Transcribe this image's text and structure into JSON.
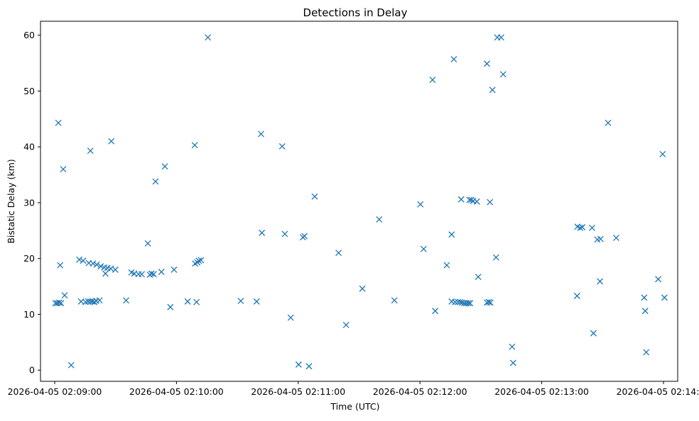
{
  "chart_data": {
    "type": "scatter",
    "title": "Detections in Delay",
    "xlabel": "Time (UTC)",
    "ylabel": "Bistatic Delay (km)",
    "marker": "x",
    "color": "#1f77b4",
    "grid": false,
    "xlim": [
      "2026-04-05 02:08:53",
      "2026-04-05 02:14:07"
    ],
    "ylim": [
      -2.0,
      62.5
    ],
    "x_ticks": [
      {
        "t": "2026-04-05 02:09:00",
        "label": "2026-04-05 02:09:00"
      },
      {
        "t": "2026-04-05 02:10:00",
        "label": "2026-04-05 02:10:00"
      },
      {
        "t": "2026-04-05 02:11:00",
        "label": "2026-04-05 02:11:00"
      },
      {
        "t": "2026-04-05 02:12:00",
        "label": "2026-04-05 02:12:00"
      },
      {
        "t": "2026-04-05 02:13:00",
        "label": "2026-04-05 02:13:00"
      },
      {
        "t": "2026-04-05 02:14:00",
        "label": "2026-04-05 02:14:00"
      }
    ],
    "y_ticks": [
      0,
      10,
      20,
      30,
      40,
      50,
      60
    ],
    "points": [
      [
        "2026-04-05 02:09:00.4",
        12.0
      ],
      [
        "2026-04-05 02:09:01.3",
        12.0
      ],
      [
        "2026-04-05 02:09:02.2",
        12.1
      ],
      [
        "2026-04-05 02:09:03.1",
        12.0
      ],
      [
        "2026-04-05 02:09:01.8",
        44.3
      ],
      [
        "2026-04-05 02:09:02.7",
        18.8
      ],
      [
        "2026-04-05 02:09:04.2",
        36.0
      ],
      [
        "2026-04-05 02:09:04.9",
        13.4
      ],
      [
        "2026-04-05 02:09:08.1",
        0.9
      ],
      [
        "2026-04-05 02:09:12.1",
        19.8
      ],
      [
        "2026-04-05 02:09:14.0",
        19.6
      ],
      [
        "2026-04-05 02:09:16.8",
        19.2
      ],
      [
        "2026-04-05 02:09:18.9",
        19.1
      ],
      [
        "2026-04-05 02:09:20.7",
        18.9
      ],
      [
        "2026-04-05 02:09:22.7",
        18.6
      ],
      [
        "2026-04-05 02:09:24.4",
        18.4
      ],
      [
        "2026-04-05 02:09:26.0",
        18.3
      ],
      [
        "2026-04-05 02:09:27.6",
        18.2
      ],
      [
        "2026-04-05 02:09:29.9",
        18.0
      ],
      [
        "2026-04-05 02:09:25.0",
        17.3
      ],
      [
        "2026-04-05 02:09:13.0",
        12.3
      ],
      [
        "2026-04-05 02:09:15.2",
        12.2
      ],
      [
        "2026-04-05 02:09:16.5",
        12.3
      ],
      [
        "2026-04-05 02:09:17.6",
        12.3
      ],
      [
        "2026-04-05 02:09:18.6",
        12.3
      ],
      [
        "2026-04-05 02:09:19.5",
        12.2
      ],
      [
        "2026-04-05 02:09:20.5",
        12.4
      ],
      [
        "2026-04-05 02:09:22.1",
        12.5
      ],
      [
        "2026-04-05 02:09:17.6",
        39.3
      ],
      [
        "2026-04-05 02:09:27.9",
        41.0
      ],
      [
        "2026-04-05 02:09:35.2",
        12.5
      ],
      [
        "2026-04-05 02:09:37.8",
        17.5
      ],
      [
        "2026-04-05 02:09:39.2",
        17.3
      ],
      [
        "2026-04-05 02:09:41.3",
        17.2
      ],
      [
        "2026-04-05 02:09:42.9",
        17.2
      ],
      [
        "2026-04-05 02:09:46.9",
        17.1
      ],
      [
        "2026-04-05 02:09:47.7",
        17.3
      ],
      [
        "2026-04-05 02:09:48.8",
        17.2
      ],
      [
        "2026-04-05 02:09:52.6",
        17.6
      ],
      [
        "2026-04-05 02:09:45.9",
        22.7
      ],
      [
        "2026-04-05 02:09:49.7",
        33.8
      ],
      [
        "2026-04-05 02:09:54.3",
        36.5
      ],
      [
        "2026-04-05 02:09:57.0",
        11.3
      ],
      [
        "2026-04-05 02:09:58.8",
        18.0
      ],
      [
        "2026-04-05 02:10:05.5",
        12.3
      ],
      [
        "2026-04-05 02:10:09.2",
        19.1
      ],
      [
        "2026-04-05 02:10:10.3",
        19.3
      ],
      [
        "2026-04-05 02:10:11.0",
        19.6
      ],
      [
        "2026-04-05 02:10:12.1",
        19.7
      ],
      [
        "2026-04-05 02:10:09.9",
        12.2
      ],
      [
        "2026-04-05 02:10:09.0",
        40.3
      ],
      [
        "2026-04-05 02:10:15.5",
        59.6
      ],
      [
        "2026-04-05 02:10:31.7",
        12.4
      ],
      [
        "2026-04-05 02:10:39.5",
        12.3
      ],
      [
        "2026-04-05 02:10:41.7",
        42.3
      ],
      [
        "2026-04-05 02:10:42.1",
        24.6
      ],
      [
        "2026-04-05 02:10:52.1",
        40.1
      ],
      [
        "2026-04-05 02:10:53.4",
        24.4
      ],
      [
        "2026-04-05 02:10:56.3",
        9.4
      ],
      [
        "2026-04-05 02:11:00.2",
        1.0
      ],
      [
        "2026-04-05 02:11:02.3",
        23.8
      ],
      [
        "2026-04-05 02:11:03.1",
        24.0
      ],
      [
        "2026-04-05 02:11:05.3",
        0.7
      ],
      [
        "2026-04-05 02:11:08.1",
        31.1
      ],
      [
        "2026-04-05 02:11:19.9",
        21.0
      ],
      [
        "2026-04-05 02:11:23.6",
        8.1
      ],
      [
        "2026-04-05 02:11:31.6",
        14.6
      ],
      [
        "2026-04-05 02:11:39.9",
        27.0
      ],
      [
        "2026-04-05 02:11:47.4",
        12.5
      ],
      [
        "2026-04-05 02:12:00.2",
        29.7
      ],
      [
        "2026-04-05 02:12:01.8",
        21.7
      ],
      [
        "2026-04-05 02:12:06.2",
        52.0
      ],
      [
        "2026-04-05 02:12:07.5",
        10.6
      ],
      [
        "2026-04-05 02:12:13.2",
        18.8
      ],
      [
        "2026-04-05 02:12:15.6",
        24.3
      ],
      [
        "2026-04-05 02:12:16.7",
        55.7
      ],
      [
        "2026-04-05 02:12:15.6",
        12.3
      ],
      [
        "2026-04-05 02:12:17.3",
        12.2
      ],
      [
        "2026-04-05 02:12:18.7",
        12.2
      ],
      [
        "2026-04-05 02:12:19.8",
        12.2
      ],
      [
        "2026-04-05 02:12:20.7",
        12.1
      ],
      [
        "2026-04-05 02:12:21.8",
        12.0
      ],
      [
        "2026-04-05 02:12:22.8",
        12.0
      ],
      [
        "2026-04-05 02:12:23.8",
        12.0
      ],
      [
        "2026-04-05 02:12:24.7",
        12.0
      ],
      [
        "2026-04-05 02:12:20.3",
        30.6
      ],
      [
        "2026-04-05 02:12:24.4",
        30.5
      ],
      [
        "2026-04-05 02:12:25.3",
        30.5
      ],
      [
        "2026-04-05 02:12:26.2",
        30.3
      ],
      [
        "2026-04-05 02:12:28.0",
        30.2
      ],
      [
        "2026-04-05 02:12:28.7",
        16.7
      ],
      [
        "2026-04-05 02:12:33.0",
        54.9
      ],
      [
        "2026-04-05 02:12:33.0",
        12.1
      ],
      [
        "2026-04-05 02:12:33.9",
        12.2
      ],
      [
        "2026-04-05 02:12:34.7",
        12.1
      ],
      [
        "2026-04-05 02:12:34.5",
        30.1
      ],
      [
        "2026-04-05 02:12:35.7",
        50.2
      ],
      [
        "2026-04-05 02:12:37.5",
        20.2
      ],
      [
        "2026-04-05 02:12:38.1",
        59.6
      ],
      [
        "2026-04-05 02:12:40.0",
        59.6
      ],
      [
        "2026-04-05 02:12:41.0",
        53.0
      ],
      [
        "2026-04-05 02:12:45.4",
        4.2
      ],
      [
        "2026-04-05 02:12:45.9",
        1.3
      ],
      [
        "2026-04-05 02:13:17.6",
        25.7
      ],
      [
        "2026-04-05 02:13:18.9",
        25.5
      ],
      [
        "2026-04-05 02:13:20.0",
        25.6
      ],
      [
        "2026-04-05 02:13:17.4",
        13.3
      ],
      [
        "2026-04-05 02:13:24.8",
        25.5
      ],
      [
        "2026-04-05 02:13:27.4",
        23.4
      ],
      [
        "2026-04-05 02:13:29.0",
        23.5
      ],
      [
        "2026-04-05 02:13:28.7",
        15.9
      ],
      [
        "2026-04-05 02:13:25.5",
        6.6
      ],
      [
        "2026-04-05 02:13:32.7",
        44.3
      ],
      [
        "2026-04-05 02:13:36.7",
        23.7
      ],
      [
        "2026-04-05 02:13:50.5",
        13.0
      ],
      [
        "2026-04-05 02:13:51.0",
        10.6
      ],
      [
        "2026-04-05 02:13:51.5",
        3.2
      ],
      [
        "2026-04-05 02:13:57.4",
        16.3
      ],
      [
        "2026-04-05 02:13:59.6",
        38.7
      ],
      [
        "2026-04-05 02:14:00.5",
        13.0
      ]
    ]
  }
}
